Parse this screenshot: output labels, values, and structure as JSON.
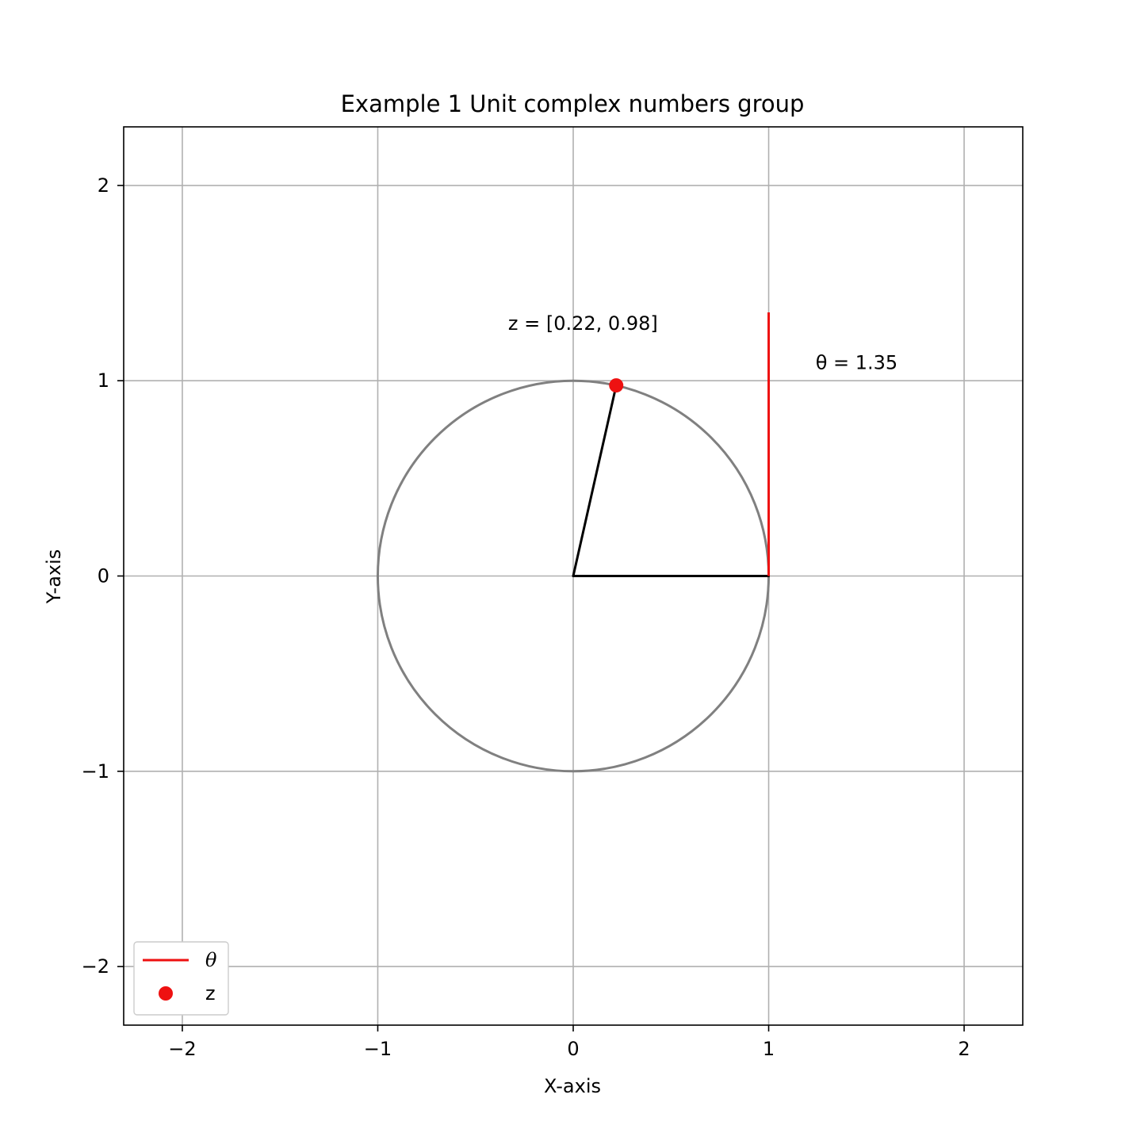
{
  "chart_data": {
    "type": "line",
    "title": "Example 1 Unit complex numbers group",
    "xlabel": "X-axis",
    "ylabel": "Y-axis",
    "xlim": [
      -2.3,
      2.3
    ],
    "ylim": [
      -2.3,
      2.3
    ],
    "xticks": [
      -2,
      -1,
      0,
      1,
      2
    ],
    "yticks": [
      -2,
      -1,
      0,
      1,
      2
    ],
    "xtick_labels": [
      "−2",
      "−1",
      "0",
      "1",
      "2"
    ],
    "ytick_labels": [
      "−2",
      "−1",
      "0",
      "1",
      "2"
    ],
    "grid": true,
    "legend_position": "lower-left",
    "unit_circle": {
      "center": [
        0,
        0
      ],
      "radius": 1,
      "color": "#808080"
    },
    "segments": [
      {
        "from": [
          0,
          0
        ],
        "to": [
          1,
          0
        ],
        "color": "#000000"
      },
      {
        "from": [
          0,
          0
        ],
        "to": [
          0.22,
          0.976
        ],
        "color": "#000000"
      }
    ],
    "series": [
      {
        "name": "θ",
        "kind": "line",
        "color": "#ee1111",
        "x": [
          1,
          1
        ],
        "y": [
          0,
          1.35
        ]
      },
      {
        "name": "z",
        "kind": "marker",
        "color": "#ee1111",
        "x": [
          0.22
        ],
        "y": [
          0.976
        ]
      }
    ],
    "annotations": [
      {
        "text": "z = [0.22, 0.98]",
        "x": 0.05,
        "y": 1.26
      },
      {
        "text": "θ = 1.35",
        "x": 1.45,
        "y": 1.06
      }
    ]
  }
}
